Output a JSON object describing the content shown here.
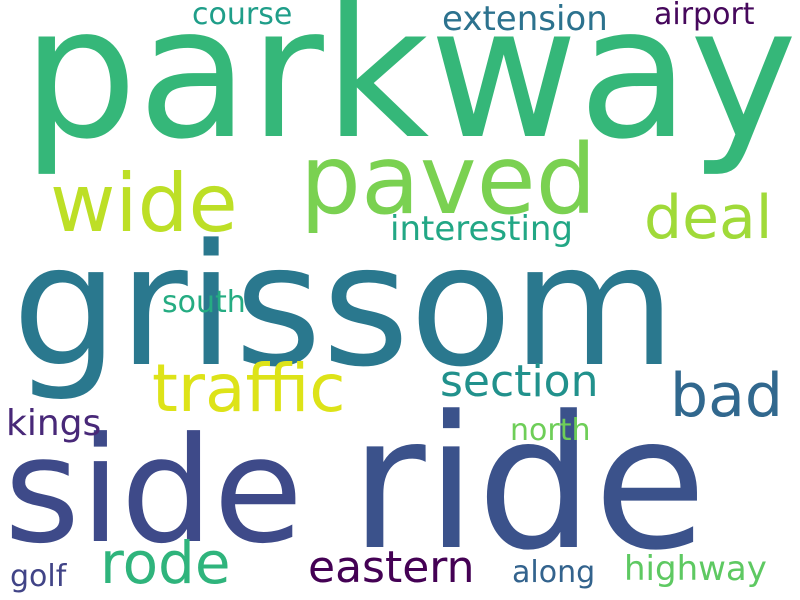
{
  "word_cloud": {
    "words": [
      {
        "text": "parkway",
        "color": "#35b779",
        "orientation": "horizontal"
      },
      {
        "text": "grissom",
        "color": "#2a788e",
        "orientation": "horizontal"
      },
      {
        "text": "side",
        "color": "#3e4a89",
        "orientation": "horizontal"
      },
      {
        "text": "ride",
        "color": "#3b528b",
        "orientation": "horizontal"
      },
      {
        "text": "paved",
        "color": "#7ad151",
        "orientation": "horizontal"
      },
      {
        "text": "wide",
        "color": "#bddf26",
        "orientation": "horizontal"
      },
      {
        "text": "traffic",
        "color": "#dde318",
        "orientation": "horizontal"
      },
      {
        "text": "deal",
        "color": "#a0da39",
        "orientation": "horizontal"
      },
      {
        "text": "section",
        "color": "#21918c",
        "orientation": "horizontal"
      },
      {
        "text": "bad",
        "color": "#31688e",
        "orientation": "horizontal"
      },
      {
        "text": "rode",
        "color": "#2fb47c",
        "orientation": "horizontal"
      },
      {
        "text": "eastern",
        "color": "#440154",
        "orientation": "horizontal"
      },
      {
        "text": "extension",
        "color": "#2c728e",
        "orientation": "horizontal"
      },
      {
        "text": "airport",
        "color": "#46085c",
        "orientation": "horizontal"
      },
      {
        "text": "course",
        "color": "#1f9e89",
        "orientation": "horizontal"
      },
      {
        "text": "interesting",
        "color": "#22a785",
        "orientation": "horizontal"
      },
      {
        "text": "south",
        "color": "#25ac82",
        "orientation": "horizontal"
      },
      {
        "text": "kings",
        "color": "#482878",
        "orientation": "horizontal"
      },
      {
        "text": "north",
        "color": "#6ece58",
        "orientation": "horizontal"
      },
      {
        "text": "golf",
        "color": "#414487",
        "orientation": "horizontal"
      },
      {
        "text": "along",
        "color": "#33638d",
        "orientation": "horizontal"
      },
      {
        "text": "highway",
        "color": "#5ec962",
        "orientation": "horizontal"
      }
    ]
  }
}
